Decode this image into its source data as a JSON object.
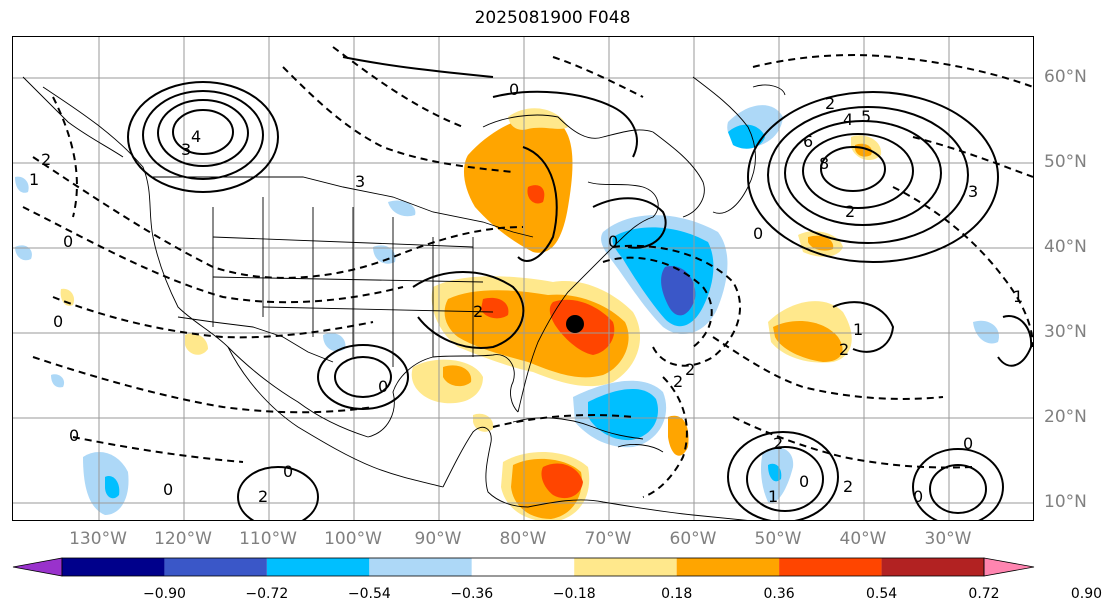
{
  "title": "2025081900 F048",
  "lon_labels": [
    "130°W",
    "120°W",
    "110°W",
    "100°W",
    "90°W",
    "80°W",
    "70°W",
    "60°W",
    "50°W",
    "40°W",
    "30°W"
  ],
  "lat_labels": [
    "60°N",
    "50°N",
    "40°N",
    "30°N",
    "20°N",
    "10°N"
  ],
  "colorbar": {
    "ticks": [
      "−0.90",
      "−0.72",
      "−0.54",
      "−0.36",
      "−0.18",
      "0.18",
      "0.36",
      "0.54",
      "0.72",
      "0.90"
    ],
    "colors": [
      "#9932cc",
      "#00008b",
      "#3a57c8",
      "#00bfff",
      "#add8f7",
      "#ffffff",
      "#ffe88c",
      "#ffa500",
      "#ff4500",
      "#b22222",
      "#ff85b0"
    ]
  },
  "map": {
    "projection": "cylindrical",
    "lon_range": [
      -140,
      -20
    ],
    "lat_range": [
      7,
      65
    ],
    "marker": "black-dot-southeast-us",
    "contour_labels": [
      "0",
      "1",
      "2",
      "3",
      "4",
      "5",
      "6",
      "8"
    ]
  }
}
